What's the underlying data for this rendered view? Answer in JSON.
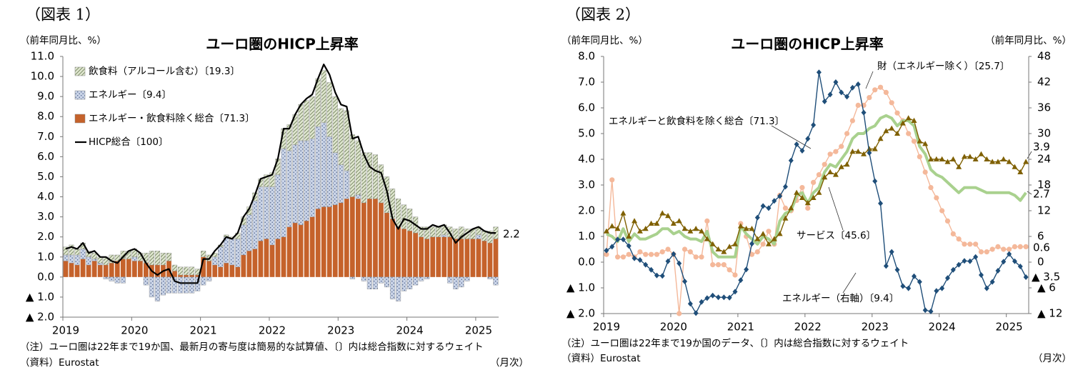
{
  "chart_data": [
    {
      "type": "bar",
      "stacked": true,
      "fig_label": "（図表 1）",
      "title": "ユーロ圏のHICP上昇率",
      "y_unit": "（前年同月比、%）",
      "notes": "（注）ユーロ圏は22年まで19か国、最新月の寄与度は簡易的な試算値、〔〕内は総合指数に対するウェイト",
      "source": "（資料）Eurostat",
      "x_unit": "（月次）",
      "categories": [
        "2019",
        null,
        null,
        null,
        null,
        null,
        null,
        null,
        null,
        null,
        null,
        null,
        "2020",
        null,
        null,
        null,
        null,
        null,
        null,
        null,
        null,
        null,
        null,
        null,
        "2021",
        null,
        null,
        null,
        null,
        null,
        null,
        null,
        null,
        null,
        null,
        null,
        "2022",
        null,
        null,
        null,
        null,
        null,
        null,
        null,
        null,
        null,
        null,
        null,
        "2023",
        null,
        null,
        null,
        null,
        null,
        null,
        null,
        null,
        null,
        null,
        null,
        "2024",
        null,
        null,
        null,
        null,
        null,
        null,
        null,
        null,
        null,
        null,
        null,
        "2025",
        null,
        null,
        null
      ],
      "ylim": [
        -2,
        11
      ],
      "yticks": [
        {
          "value": -2,
          "label": "▲ 2.0"
        },
        {
          "value": -1,
          "label": "▲ 1.0"
        },
        {
          "value": 0,
          "label": "0.0"
        },
        {
          "value": 1,
          "label": "1.0"
        },
        {
          "value": 2,
          "label": "2.0"
        },
        {
          "value": 3,
          "label": "3.0"
        },
        {
          "value": 4,
          "label": "4.0"
        },
        {
          "value": 5,
          "label": "5.0"
        },
        {
          "value": 6,
          "label": "6.0"
        },
        {
          "value": 7,
          "label": "7.0"
        },
        {
          "value": 8,
          "label": "8.0"
        },
        {
          "value": 9,
          "label": "9.0"
        },
        {
          "value": 10,
          "label": "10.0"
        },
        {
          "value": 11,
          "label": "11.0"
        }
      ],
      "legend": "upper left",
      "series": [
        {
          "name": "飲食料（アルコール含む）〔19.3〕",
          "color": "#dfe6cf",
          "pattern": "hatch",
          "values": [
            0.4,
            0.5,
            0.3,
            0.3,
            0.3,
            0.3,
            0.3,
            0.4,
            0.4,
            0.3,
            0.4,
            0.4,
            0.4,
            0.4,
            0.5,
            0.7,
            0.7,
            0.6,
            0.4,
            0.3,
            0.4,
            0.4,
            0.4,
            0.3,
            0.3,
            0.3,
            0.2,
            0.1,
            0.1,
            0.1,
            0.3,
            0.4,
            0.4,
            0.4,
            0.4,
            0.6,
            0.7,
            0.8,
            1.0,
            1.3,
            1.5,
            1.8,
            2.0,
            2.1,
            2.4,
            2.6,
            2.7,
            2.8,
            2.8,
            3.0,
            3.1,
            2.7,
            2.5,
            2.3,
            2.2,
            1.9,
            1.8,
            1.5,
            1.4,
            1.2,
            1.1,
            0.8,
            0.5,
            0.6,
            0.5,
            0.5,
            0.5,
            0.5,
            0.5,
            0.6,
            0.5,
            0.5,
            0.4,
            0.5,
            0.6,
            0.6
          ]
        },
        {
          "name": "エネルギー〔9.4〕",
          "color": "#cbd5e8",
          "pattern": "dots",
          "values": [
            0.3,
            0.4,
            0.5,
            0.5,
            0.4,
            0.1,
            0.1,
            -0.1,
            -0.2,
            -0.3,
            -0.3,
            0.0,
            0.2,
            0.0,
            -0.4,
            -1.0,
            -1.2,
            -0.9,
            -0.8,
            -0.8,
            -0.8,
            -0.8,
            -0.8,
            -0.7,
            -0.4,
            -0.2,
            0.4,
            1.0,
            1.3,
            1.3,
            1.4,
            1.5,
            1.8,
            2.4,
            2.7,
            2.6,
            2.9,
            3.2,
            4.4,
            3.8,
            3.9,
            4.2,
            4.0,
            3.9,
            4.1,
            4.2,
            3.5,
            2.6,
            1.9,
            1.4,
            -0.1,
            0.2,
            -0.2,
            -0.6,
            -0.6,
            -0.3,
            -0.5,
            -1.1,
            -1.2,
            -0.7,
            -0.6,
            -0.4,
            -0.2,
            -0.1,
            0.0,
            0.0,
            0.1,
            -0.3,
            -0.6,
            -0.5,
            -0.2,
            0.0,
            0.2,
            0.0,
            -0.1,
            -0.4
          ]
        },
        {
          "name": "エネルギー・飲食料除く総合〔71.3〕",
          "color": "#c5622b",
          "values": [
            0.8,
            0.7,
            0.6,
            0.9,
            0.6,
            0.8,
            0.6,
            0.6,
            0.7,
            0.8,
            0.9,
            0.9,
            0.8,
            0.8,
            0.7,
            0.6,
            0.6,
            0.6,
            0.8,
            0.3,
            0.1,
            0.1,
            0.1,
            0.1,
            1.0,
            0.8,
            0.6,
            0.5,
            0.7,
            0.6,
            0.5,
            1.1,
            1.3,
            1.4,
            1.8,
            1.9,
            1.6,
            1.9,
            2.0,
            2.5,
            2.7,
            2.6,
            2.8,
            3.0,
            3.4,
            3.5,
            3.5,
            3.6,
            3.7,
            3.9,
            4.0,
            3.9,
            3.7,
            3.9,
            3.9,
            3.7,
            3.2,
            2.9,
            2.5,
            2.4,
            2.3,
            2.2,
            2.0,
            1.9,
            2.0,
            2.0,
            2.0,
            2.0,
            1.9,
            1.9,
            1.9,
            1.9,
            1.9,
            1.8,
            1.7,
            1.9
          ]
        },
        {
          "name": "HICP総合〔100〕",
          "color": "#000000",
          "type": "line",
          "values": [
            1.4,
            1.5,
            1.4,
            1.7,
            1.2,
            1.3,
            1.0,
            1.0,
            0.8,
            0.7,
            1.0,
            1.3,
            1.4,
            1.2,
            0.7,
            0.3,
            0.1,
            0.3,
            0.4,
            -0.2,
            -0.3,
            -0.3,
            -0.3,
            -0.3,
            0.9,
            0.9,
            1.3,
            1.6,
            2.0,
            1.9,
            2.2,
            3.0,
            3.4,
            4.1,
            4.9,
            5.0,
            5.1,
            5.9,
            7.4,
            7.4,
            8.1,
            8.6,
            8.9,
            9.1,
            9.9,
            10.6,
            10.1,
            9.2,
            8.6,
            8.5,
            6.9,
            7.0,
            6.1,
            5.5,
            5.3,
            5.2,
            4.3,
            2.9,
            2.4,
            2.9,
            2.8,
            2.6,
            2.4,
            2.4,
            2.6,
            2.5,
            2.6,
            2.2,
            1.7,
            2.0,
            2.2,
            2.4,
            2.5,
            2.3,
            2.2,
            2.2
          ]
        }
      ]
    },
    {
      "type": "line",
      "fig_label": "（図表 2）",
      "title": "ユーロ圏のHICP上昇率",
      "y_unit": "（前年同月比、%）",
      "y2_unit": "（前年同月比、%）",
      "notes": "（注）ユーロ圏は22年まで19か国のデータ、〔〕内は総合指数に対するウェイト",
      "source": "（資料）Eurostat",
      "x_unit": "（月次）",
      "categories": [
        "2019",
        null,
        null,
        null,
        null,
        null,
        null,
        null,
        null,
        null,
        null,
        null,
        "2020",
        null,
        null,
        null,
        null,
        null,
        null,
        null,
        null,
        null,
        null,
        null,
        "2021",
        null,
        null,
        null,
        null,
        null,
        null,
        null,
        null,
        null,
        null,
        null,
        "2022",
        null,
        null,
        null,
        null,
        null,
        null,
        null,
        null,
        null,
        null,
        null,
        "2023",
        null,
        null,
        null,
        null,
        null,
        null,
        null,
        null,
        null,
        null,
        null,
        "2024",
        null,
        null,
        null,
        null,
        null,
        null,
        null,
        null,
        null,
        null,
        null,
        "2025",
        null,
        null,
        null
      ],
      "ylim": [
        -2,
        8
      ],
      "yticks": [
        {
          "value": -2,
          "label": "▲ 2.0"
        },
        {
          "value": -1,
          "label": "▲ 1.0"
        },
        {
          "value": 0,
          "label": "0.0"
        },
        {
          "value": 1,
          "label": "1.0"
        },
        {
          "value": 2,
          "label": "2.0"
        },
        {
          "value": 3,
          "label": "3.0"
        },
        {
          "value": 4,
          "label": "4.0"
        },
        {
          "value": 5,
          "label": "5.0"
        },
        {
          "value": 6,
          "label": "6.0"
        },
        {
          "value": 7,
          "label": "7.0"
        },
        {
          "value": 8,
          "label": "8.0"
        }
      ],
      "y2lim": [
        -12,
        48
      ],
      "y2ticks": [
        {
          "value": -12,
          "label": "▲ 12"
        },
        {
          "value": -6,
          "label": "▲ 6"
        },
        0,
        6,
        12,
        18,
        24,
        30,
        36,
        42,
        48
      ],
      "series": [
        {
          "name": "財（エネルギー除く）〔25.7〕",
          "color": "#f4b89a",
          "marker": "circle",
          "values": [
            0.3,
            3.2,
            0.2,
            0.2,
            0.3,
            0.2,
            0.4,
            0.3,
            0.3,
            0.3,
            0.4,
            0.5,
            0.3,
            -2.0,
            0.5,
            0.4,
            0.2,
            0.2,
            1.6,
            -0.1,
            -0.1,
            -0.1,
            -0.3,
            -0.5,
            1.5,
            1.0,
            0.3,
            0.4,
            0.7,
            1.2,
            0.7,
            2.6,
            2.1,
            2.0,
            2.4,
            2.9,
            2.1,
            3.1,
            3.4,
            3.8,
            4.2,
            4.3,
            4.5,
            5.0,
            5.5,
            6.1,
            6.1,
            6.4,
            6.7,
            6.8,
            6.6,
            6.2,
            5.8,
            5.5,
            5.0,
            4.7,
            4.1,
            3.5,
            2.9,
            2.5,
            2.0,
            1.6,
            1.1,
            0.9,
            0.7,
            0.7,
            0.7,
            0.4,
            0.4,
            0.5,
            0.6,
            0.5,
            0.5,
            0.6,
            0.6,
            0.6
          ]
        },
        {
          "name": "エネルギーと飲食料を除く総合〔71.3〕",
          "color": "#a9d18e",
          "values": [
            1.1,
            1.0,
            0.8,
            1.3,
            0.8,
            1.1,
            0.9,
            0.9,
            1.0,
            1.1,
            1.3,
            1.3,
            1.1,
            1.2,
            1.0,
            0.9,
            0.9,
            0.8,
            1.2,
            0.4,
            0.2,
            0.2,
            0.2,
            0.2,
            1.4,
            1.1,
            0.9,
            0.7,
            1.0,
            0.9,
            0.7,
            1.6,
            1.9,
            2.0,
            2.6,
            2.7,
            2.3,
            2.7,
            2.9,
            3.5,
            3.8,
            3.7,
            4.0,
            4.3,
            4.8,
            5.0,
            5.0,
            5.2,
            5.3,
            5.6,
            5.7,
            5.6,
            5.3,
            5.5,
            5.5,
            5.3,
            4.5,
            4.2,
            3.6,
            3.4,
            3.3,
            3.1,
            2.9,
            2.7,
            2.9,
            2.9,
            2.9,
            2.8,
            2.7,
            2.7,
            2.7,
            2.7,
            2.7,
            2.6,
            2.4,
            2.7
          ]
        },
        {
          "name": "サービス〔45.6〕",
          "color": "#7f6000",
          "marker": "triangle",
          "values": [
            1.2,
            1.4,
            1.3,
            1.9,
            1.0,
            1.6,
            1.2,
            1.3,
            1.5,
            1.5,
            1.9,
            1.8,
            1.5,
            1.6,
            1.3,
            1.2,
            1.3,
            1.2,
            0.9,
            0.7,
            0.5,
            0.4,
            0.6,
            0.7,
            1.4,
            1.3,
            1.3,
            0.9,
            1.1,
            0.7,
            0.9,
            1.1,
            1.7,
            2.1,
            2.7,
            2.5,
            2.3,
            2.5,
            2.7,
            3.3,
            3.5,
            3.4,
            3.7,
            3.8,
            4.3,
            4.3,
            4.2,
            4.4,
            4.4,
            4.8,
            5.1,
            5.2,
            5.0,
            5.4,
            5.6,
            5.5,
            4.7,
            4.6,
            4.0,
            4.0,
            4.0,
            3.9,
            4.0,
            3.7,
            4.1,
            4.1,
            4.0,
            4.2,
            4.0,
            3.9,
            3.9,
            4.0,
            3.9,
            3.7,
            3.5,
            3.9
          ]
        },
        {
          "name": "エネルギー（右軸）〔9.4〕",
          "color": "#1f4e79",
          "marker": "diamond",
          "axis": "y2",
          "values": [
            2.7,
            3.6,
            5.3,
            5.3,
            3.8,
            0.9,
            0.5,
            -0.6,
            -1.8,
            -3.1,
            -3.2,
            0.2,
            1.9,
            -0.3,
            -4.5,
            -9.7,
            -11.9,
            -9.3,
            -8.4,
            -7.8,
            -8.2,
            -8.2,
            -8.3,
            -6.9,
            -4.2,
            -1.7,
            4.3,
            10.4,
            13.1,
            12.6,
            14.3,
            15.4,
            17.6,
            23.7,
            27.5,
            26.0,
            28.8,
            32.0,
            44.3,
            37.5,
            39.1,
            42.0,
            39.6,
            38.6,
            40.7,
            41.5,
            34.9,
            25.5,
            18.9,
            13.7,
            -0.9,
            2.4,
            -1.8,
            -5.6,
            -6.1,
            -3.3,
            -4.6,
            -11.2,
            -11.5,
            -6.7,
            -6.1,
            -3.7,
            -1.8,
            -0.6,
            0.3,
            0.2,
            1.2,
            -3.0,
            -6.1,
            -4.6,
            -2.0,
            0.1,
            1.9,
            0.2,
            -1.0,
            -3.5
          ],
          "value_labels": [
            null,
            null,
            null,
            null,
            null,
            null,
            null,
            null,
            null,
            null,
            null,
            null,
            null,
            null,
            null,
            null,
            null,
            null,
            null,
            null,
            null,
            null,
            null,
            null,
            null,
            null,
            null,
            null,
            null,
            null,
            null,
            null,
            null,
            null,
            null,
            null,
            null,
            null,
            null,
            null,
            null,
            null,
            null,
            null,
            null,
            null,
            null,
            null,
            null,
            null,
            null,
            null,
            null,
            null,
            null,
            null,
            null,
            null,
            null,
            null,
            null,
            null,
            null,
            null,
            null,
            null,
            null,
            null,
            null,
            null,
            null,
            null,
            null,
            null,
            null,
            "▲ 3.5"
          ]
        }
      ]
    }
  ]
}
